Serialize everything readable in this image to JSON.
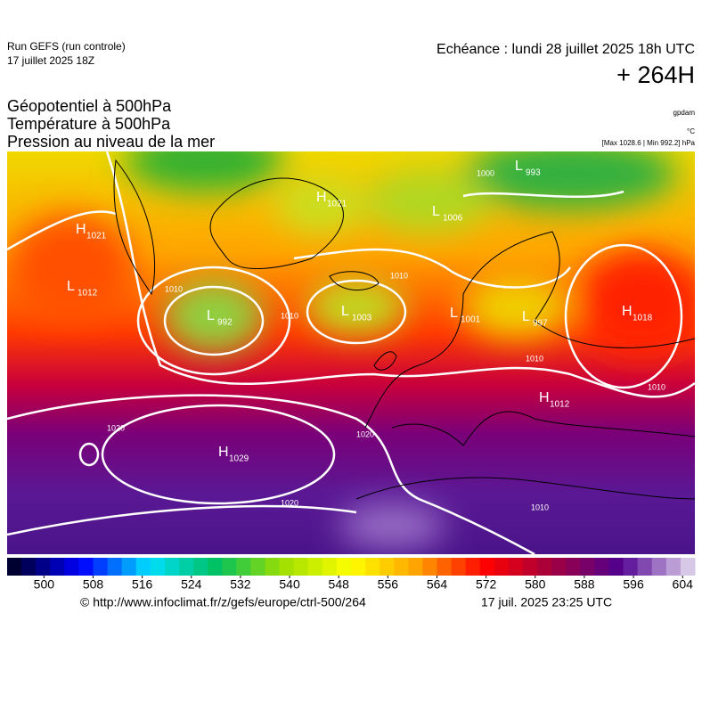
{
  "header": {
    "run": "Run GEFS (run controle)",
    "run_date": "17 juillet 2025 18Z",
    "valid": "Echéance : lundi 28 juillet 2025 18h UTC",
    "lead": "+ 264H",
    "fields": [
      "Géopotentiel à 500hPa",
      "Température à 500hPa",
      "Pression au niveau de la mer"
    ],
    "units": [
      "gpdam",
      "°C",
      "[Max 1028.6 | Min 992.2] hPa"
    ]
  },
  "map": {
    "centers": [
      {
        "type": "H",
        "value": 1021
      },
      {
        "type": "L",
        "value": 1012
      },
      {
        "type": "L",
        "value": 992
      },
      {
        "type": "H",
        "value": 1021
      },
      {
        "type": "L",
        "value": 1006
      },
      {
        "type": "L",
        "value": 993
      },
      {
        "type": "L",
        "value": 1003
      },
      {
        "type": "L",
        "value": 1001
      },
      {
        "type": "L",
        "value": 997
      },
      {
        "type": "H",
        "value": 1018
      },
      {
        "type": "H",
        "value": 1012
      },
      {
        "type": "H",
        "value": 1029
      }
    ],
    "isobar_labels": [
      1010,
      1010,
      1010,
      1010,
      1010,
      1020,
      1020,
      1020,
      1010,
      1000
    ]
  },
  "colorbar": {
    "range": [
      494,
      606
    ],
    "ticks": [
      500,
      508,
      516,
      524,
      532,
      540,
      548,
      556,
      564,
      572,
      580,
      588,
      596,
      604
    ]
  },
  "footer": {
    "source": "© http://www.infoclimat.fr/z/gefs/europe/ctrl-500/264",
    "generated": "17 juil. 2025 23:25 UTC"
  }
}
